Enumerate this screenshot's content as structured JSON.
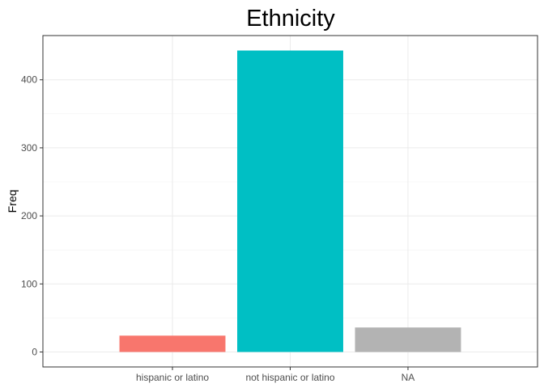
{
  "chart_data": {
    "type": "bar",
    "title": "Ethnicity",
    "xlabel": "",
    "ylabel": "Freq",
    "categories": [
      "hispanic or latino",
      "not hispanic or latino",
      "NA"
    ],
    "values": [
      24,
      443,
      36
    ],
    "colors": [
      "#F8766D",
      "#00BFC4",
      "#B3B3B3"
    ],
    "ylim": [
      -22,
      465
    ],
    "yticks": [
      0,
      100,
      200,
      300,
      400
    ],
    "ytick_labels": [
      "0",
      "100",
      "200",
      "300",
      "400"
    ],
    "grid": true,
    "legend": "none"
  }
}
